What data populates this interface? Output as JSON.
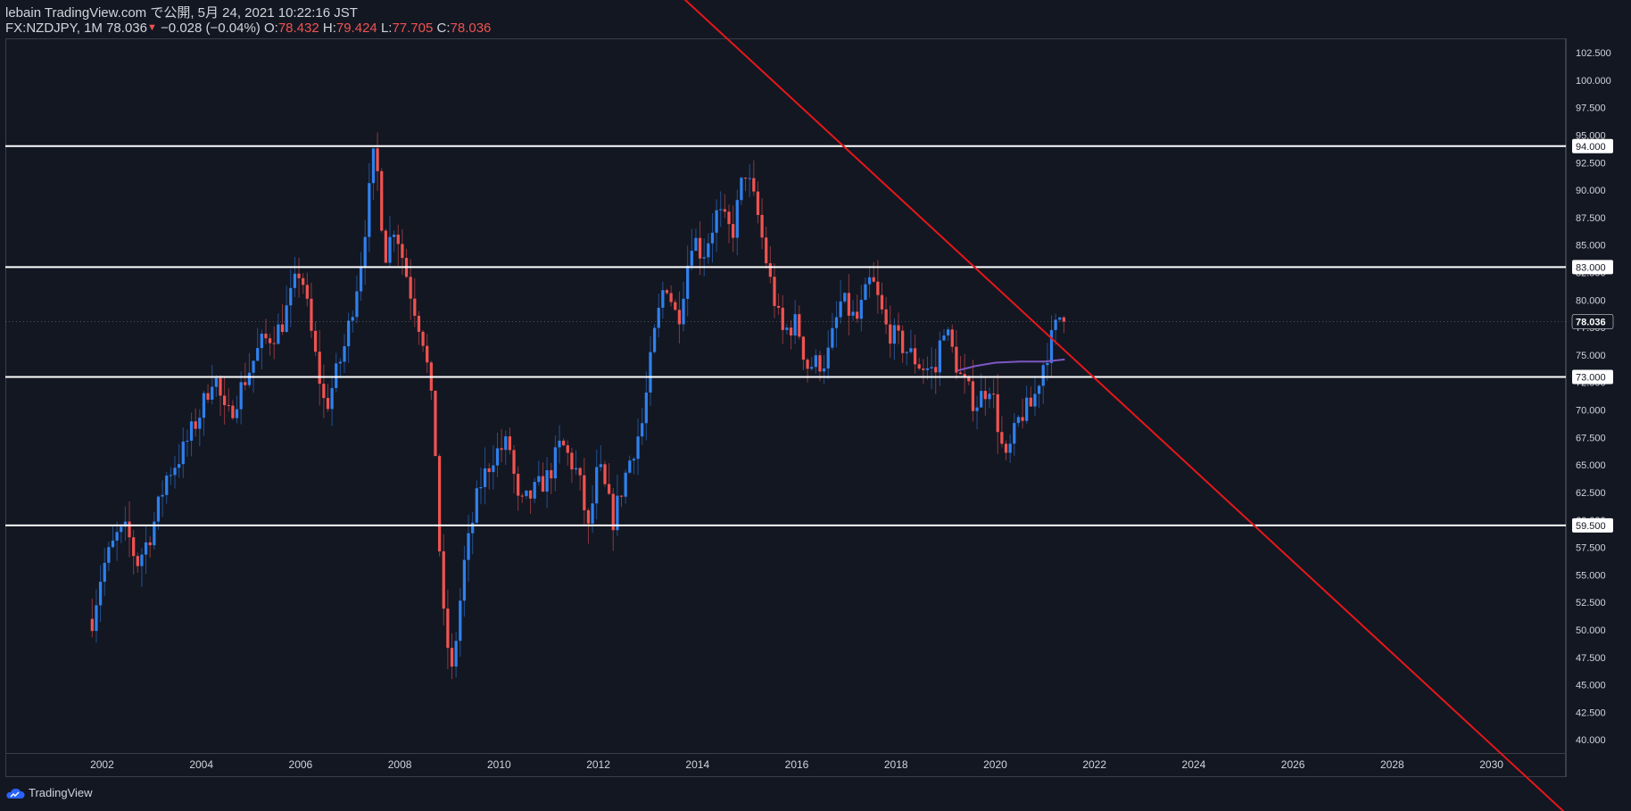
{
  "header": {
    "published_line": "lebain TradingView.com で公開, 5月 24, 2021 10:22:16 JST",
    "symbol_prefix": "FX:NZDJPY, 1M",
    "last_price": "78.036",
    "change_arrow": "▼",
    "change": "−0.028 (−0.04%)",
    "o_label": "O:",
    "o_value": "78.432",
    "h_label": "H:",
    "h_value": "79.424",
    "l_label": "L:",
    "l_value": "77.705",
    "c_label": "C:",
    "c_value": "78.036"
  },
  "footer": {
    "brand": "TradingView"
  },
  "colors": {
    "background": "#131722",
    "up": "#2f80ed",
    "down": "#ef5350",
    "trendline": "#e5171a",
    "level_line": "#ffffff",
    "moving_average": "#7e57c2",
    "axis_text": "#d1d4dc"
  },
  "chart_data": {
    "type": "candlestick",
    "symbol": "FX:NZDJPY",
    "interval": "1M",
    "x_ticks": [
      "2002",
      "2004",
      "2006",
      "2008",
      "2010",
      "2012",
      "2014",
      "2016",
      "2018",
      "2020",
      "2022",
      "2024",
      "2026",
      "2028",
      "2030"
    ],
    "x_range": [
      2000.05,
      2031.5
    ],
    "y_ticks": [
      "40.000",
      "42.500",
      "45.000",
      "47.500",
      "50.000",
      "52.500",
      "55.000",
      "57.500",
      "60.000",
      "62.500",
      "65.000",
      "67.500",
      "70.000",
      "72.500",
      "75.000",
      "77.500",
      "80.000",
      "82.500",
      "85.000",
      "87.500",
      "90.000",
      "92.500",
      "95.000",
      "97.500",
      "100.000",
      "102.500"
    ],
    "y_range": [
      38.8,
      103.8
    ],
    "horizontal_levels": [
      {
        "price": 94.0,
        "label": "94.000"
      },
      {
        "price": 83.0,
        "label": "83.000"
      },
      {
        "price": 73.0,
        "label": "73.000"
      },
      {
        "price": 59.5,
        "label": "59.500"
      }
    ],
    "last_price_label": "78.036",
    "trendline": {
      "from": [
        2012.0,
        114.6
      ],
      "to": [
        2031.5,
        33.3
      ]
    },
    "moving_average": [
      [
        2019.25,
        73.6
      ],
      [
        2019.6,
        74.0
      ],
      [
        2020.0,
        74.3
      ],
      [
        2020.5,
        74.4
      ],
      [
        2021.0,
        74.4
      ],
      [
        2021.4,
        74.6
      ]
    ],
    "monthly_close_path": [
      [
        2001.8,
        51.0
      ],
      [
        2002.0,
        55.5
      ],
      [
        2002.3,
        58.5
      ],
      [
        2002.5,
        59.0
      ],
      [
        2002.7,
        56.0
      ],
      [
        2003.0,
        59.0
      ],
      [
        2003.3,
        64.0
      ],
      [
        2003.6,
        66.0
      ],
      [
        2004.0,
        70.0
      ],
      [
        2004.25,
        73.5
      ],
      [
        2004.5,
        69.0
      ],
      [
        2004.9,
        73.0
      ],
      [
        2005.2,
        76.0
      ],
      [
        2005.6,
        77.5
      ],
      [
        2006.0,
        83.0
      ],
      [
        2006.25,
        76.0
      ],
      [
        2006.5,
        70.0
      ],
      [
        2006.9,
        76.0
      ],
      [
        2007.2,
        83.0
      ],
      [
        2007.5,
        94.0
      ],
      [
        2007.7,
        84.0
      ],
      [
        2007.9,
        87.0
      ],
      [
        2008.2,
        81.0
      ],
      [
        2008.5,
        76.0
      ],
      [
        2008.7,
        68.0
      ],
      [
        2008.85,
        52.0
      ],
      [
        2009.05,
        46.0
      ],
      [
        2009.3,
        56.0
      ],
      [
        2009.6,
        63.0
      ],
      [
        2009.9,
        66.0
      ],
      [
        2010.2,
        67.0
      ],
      [
        2010.4,
        61.0
      ],
      [
        2010.8,
        63.0
      ],
      [
        2011.0,
        64.0
      ],
      [
        2011.25,
        67.0
      ],
      [
        2011.6,
        64.0
      ],
      [
        2011.8,
        59.0
      ],
      [
        2012.0,
        65.0
      ],
      [
        2012.3,
        60.0
      ],
      [
        2012.6,
        65.0
      ],
      [
        2012.9,
        69.0
      ],
      [
        2013.1,
        76.0
      ],
      [
        2013.35,
        82.0
      ],
      [
        2013.6,
        78.0
      ],
      [
        2013.9,
        86.0
      ],
      [
        2014.1,
        84.0
      ],
      [
        2014.4,
        88.0
      ],
      [
        2014.7,
        86.0
      ],
      [
        2014.95,
        92.0
      ],
      [
        2015.2,
        88.0
      ],
      [
        2015.45,
        82.0
      ],
      [
        2015.7,
        77.0
      ],
      [
        2016.0,
        78.0
      ],
      [
        2016.2,
        74.0
      ],
      [
        2016.6,
        74.5
      ],
      [
        2016.9,
        80.0
      ],
      [
        2017.2,
        78.0
      ],
      [
        2017.5,
        82.0
      ],
      [
        2017.8,
        77.5
      ],
      [
        2018.2,
        75.5
      ],
      [
        2018.5,
        74.0
      ],
      [
        2018.8,
        73.5
      ],
      [
        2018.95,
        78.0
      ],
      [
        2019.3,
        73.0
      ],
      [
        2019.6,
        70.5
      ],
      [
        2019.9,
        72.5
      ],
      [
        2020.2,
        65.0
      ],
      [
        2020.5,
        69.5
      ],
      [
        2020.75,
        70.5
      ],
      [
        2020.95,
        74.0
      ],
      [
        2021.1,
        76.0
      ],
      [
        2021.3,
        78.5
      ],
      [
        2021.4,
        78.036
      ]
    ]
  }
}
